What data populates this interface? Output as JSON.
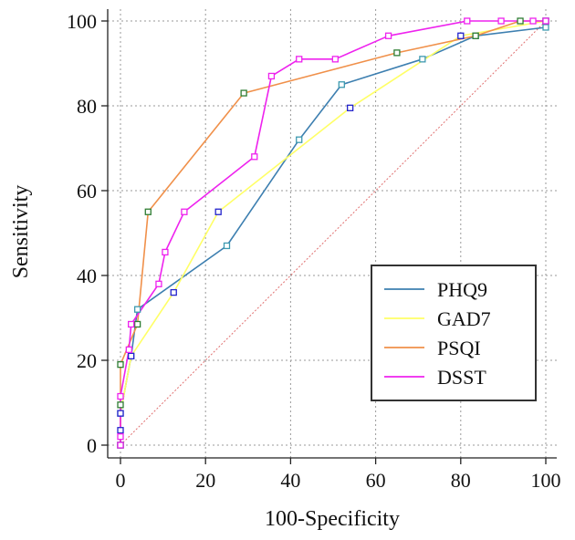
{
  "chart_data": {
    "type": "line",
    "title": "",
    "xlabel": "100-Specificity",
    "ylabel": "Sensitivity",
    "xlim": [
      0,
      100
    ],
    "ylim": [
      0,
      100
    ],
    "xticks": [
      0,
      20,
      40,
      60,
      80,
      100
    ],
    "yticks": [
      0,
      20,
      40,
      60,
      80,
      100
    ],
    "grid": true,
    "legend_position": "bottom-right",
    "reference_line": {
      "from": [
        0,
        0
      ],
      "to": [
        100,
        100
      ],
      "color": "#e07070"
    },
    "series": [
      {
        "name": "PHQ9",
        "color": "#3d7fb0",
        "marker_color": "#3d9ab0",
        "points": [
          [
            0,
            0
          ],
          [
            0,
            7.5
          ],
          [
            2.5,
            21
          ],
          [
            4,
            32
          ],
          [
            25,
            47
          ],
          [
            42,
            72
          ],
          [
            52,
            85
          ],
          [
            71,
            91
          ],
          [
            83.5,
            96.5
          ],
          [
            100,
            98.5
          ]
        ]
      },
      {
        "name": "GAD7",
        "color": "#ffff66",
        "marker_color": "#2222cc",
        "points": [
          [
            0,
            0
          ],
          [
            0,
            3.5
          ],
          [
            0,
            7.5
          ],
          [
            2.5,
            21
          ],
          [
            12.5,
            36
          ],
          [
            23,
            55
          ],
          [
            54,
            79.5
          ],
          [
            80,
            96.5
          ],
          [
            100,
            100
          ]
        ]
      },
      {
        "name": "PSQI",
        "color": "#f0904a",
        "marker_color": "#2e7d32",
        "points": [
          [
            0,
            0
          ],
          [
            0,
            9.5
          ],
          [
            0,
            19
          ],
          [
            4,
            28.5
          ],
          [
            6.5,
            55
          ],
          [
            29,
            83
          ],
          [
            65,
            92.5
          ],
          [
            83.5,
            96.5
          ],
          [
            94,
            100
          ],
          [
            100,
            100
          ]
        ]
      },
      {
        "name": "DSST",
        "color": "#ee22ee",
        "marker_color": "#ee22ee",
        "points": [
          [
            0,
            0
          ],
          [
            0,
            2
          ],
          [
            0,
            11.5
          ],
          [
            2,
            22.5
          ],
          [
            2.5,
            28.5
          ],
          [
            9,
            38
          ],
          [
            10.5,
            45.5
          ],
          [
            15,
            55
          ],
          [
            31.5,
            68
          ],
          [
            35.5,
            87
          ],
          [
            42,
            91
          ],
          [
            50.5,
            91
          ],
          [
            63,
            96.5
          ],
          [
            81.5,
            100
          ],
          [
            89.5,
            100
          ],
          [
            97,
            100
          ],
          [
            100,
            100
          ]
        ]
      }
    ]
  }
}
